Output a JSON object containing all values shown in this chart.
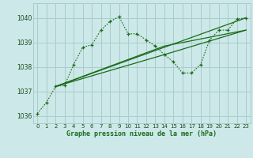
{
  "background_color": "#cce8e8",
  "grid_color": "#aacccc",
  "line_color": "#1a6b1a",
  "title": "Graphe pression niveau de la mer (hPa)",
  "xlim": [
    -0.5,
    23.5
  ],
  "ylim": [
    1035.7,
    1040.6
  ],
  "yticks": [
    1036,
    1037,
    1038,
    1039,
    1040
  ],
  "xticks": [
    0,
    1,
    2,
    3,
    4,
    5,
    6,
    7,
    8,
    9,
    10,
    11,
    12,
    13,
    14,
    15,
    16,
    17,
    18,
    19,
    20,
    21,
    22,
    23
  ],
  "series": [
    {
      "x": [
        0,
        1,
        2,
        3,
        4,
        5,
        6,
        7,
        8,
        9,
        10,
        11,
        12,
        13,
        14,
        15,
        16,
        17,
        18,
        19,
        20,
        21,
        22,
        23
      ],
      "y": [
        1036.1,
        1036.55,
        1037.2,
        1037.25,
        1038.1,
        1038.8,
        1038.9,
        1039.5,
        1039.85,
        1040.05,
        1039.35,
        1039.35,
        1039.1,
        1038.85,
        1038.5,
        1038.2,
        1037.75,
        1037.75,
        1038.1,
        1039.1,
        1039.5,
        1039.5,
        1039.95,
        1040.0
      ],
      "style": "dotted",
      "marker": "+"
    },
    {
      "x": [
        2,
        23
      ],
      "y": [
        1037.2,
        1040.0
      ],
      "style": "solid"
    },
    {
      "x": [
        2,
        14,
        23
      ],
      "y": [
        1037.2,
        1038.5,
        1039.5
      ],
      "style": "solid"
    },
    {
      "x": [
        2,
        14,
        23
      ],
      "y": [
        1037.2,
        1038.85,
        1039.5
      ],
      "style": "solid"
    }
  ]
}
